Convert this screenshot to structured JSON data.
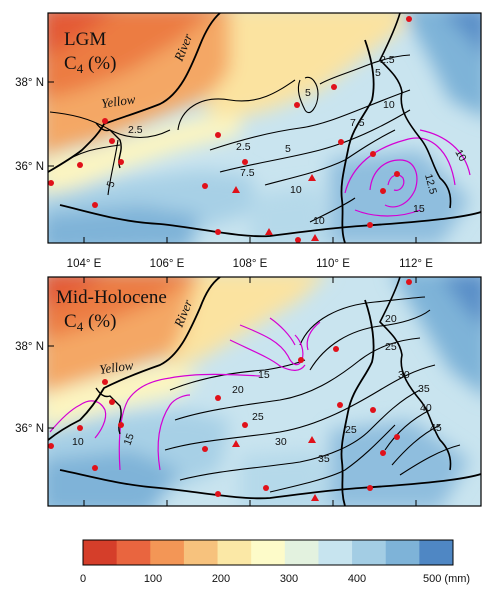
{
  "panels": [
    {
      "id": "lgm",
      "title_line1": "LGM",
      "title_line2": "C4 (%)",
      "river_name_1": "Yellow",
      "river_name_2": "River",
      "contour_labels": {
        "black": [
          "2.5",
          "5",
          "2.5",
          "5",
          "7.5",
          "10",
          "10",
          "5",
          "2.5",
          "7.5",
          "5",
          "10"
        ],
        "magenta": [
          "12.5",
          "15",
          "10"
        ]
      }
    },
    {
      "id": "mid-holocene",
      "title_line1": "Mid-Holocene",
      "title_line2": "C4 (%)",
      "river_name_1": "Yellow",
      "river_name_2": "River",
      "contour_labels": {
        "black": [
          "20",
          "25",
          "20",
          "25",
          "30",
          "35",
          "25",
          "30",
          "35",
          "40",
          "45"
        ],
        "magenta": [
          "15",
          "10",
          "15"
        ]
      }
    }
  ],
  "x_axis_ticks": [
    "104° E",
    "106° E",
    "108° E",
    "110° E",
    "112° E"
  ],
  "y_axis_ticks": [
    "38° N",
    "36° N"
  ],
  "colorbar": {
    "tick_labels": [
      "0",
      "100",
      "200",
      "300",
      "400",
      "500 (mm)"
    ],
    "colors": [
      "#d53e2a",
      "#e9653f",
      "#f39656",
      "#f7c27d",
      "#fbe8a6",
      "#fdfbc9",
      "#e3f2df",
      "#c7e4ef",
      "#a3cde4",
      "#7eb3d8",
      "#4f87c4"
    ]
  },
  "colors": {
    "site_marker": "#e0111a",
    "contour_black": "#000000",
    "contour_magenta": "#d400d4",
    "boundary": "#000000"
  },
  "icons": [
    "site-circle-icon",
    "site-triangle-icon"
  ]
}
